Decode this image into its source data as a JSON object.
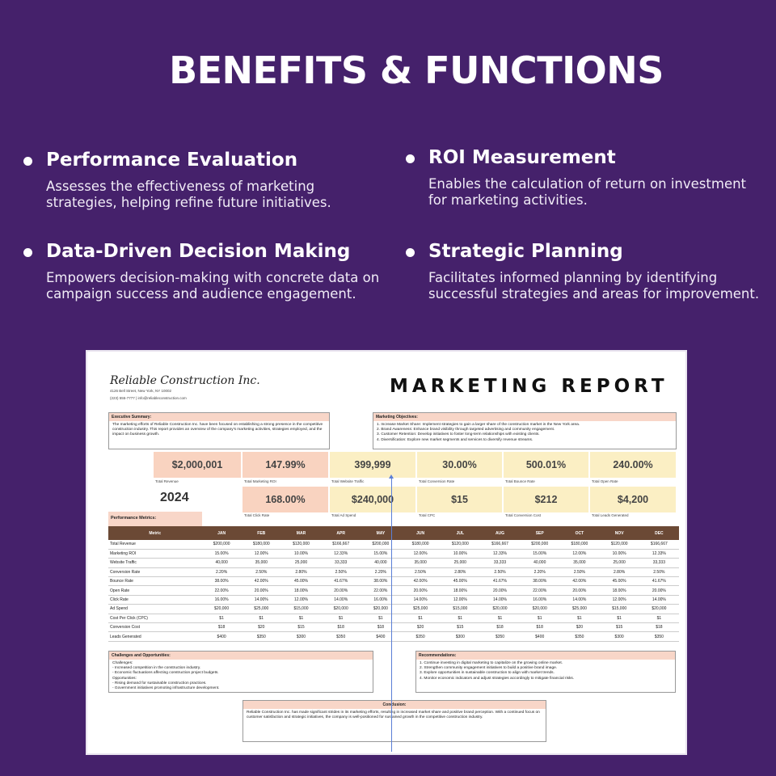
{
  "headline": "BENEFITS & FUNCTIONS",
  "benefits": [
    {
      "title": "Performance Evaluation",
      "desc": "Assesses the effectiveness of marketing strategies, helping refine future initiatives."
    },
    {
      "title": "ROI Measurement",
      "desc": "Enables the calculation of return on investment for marketing activities."
    },
    {
      "title": "Data-Driven Decision Making",
      "desc": "Empowers decision-making with concrete data on campaign success and audience engagement."
    },
    {
      "title": "Strategic Planning",
      "desc": "Facilitates informed planning by identifying successful strategies and areas for improvement."
    }
  ],
  "report": {
    "company": "Reliable Construction Inc.",
    "address": "4126 Bell Street, New York, NY 10002",
    "contact": "(223) 555-7777 | info@reliableconstruction.com",
    "title": "MARKETING REPORT",
    "executive_summary": {
      "heading": "Executive Summary:",
      "text": "The marketing efforts of Reliable Construction Inc. have been focused on establishing a strong presence in the competitive construction industry. This report provides an overview of the company's marketing activities, strategies employed, and the impact on business growth."
    },
    "objectives": {
      "heading": "Marketing Objectives:",
      "lines": [
        "1. Increase Market Share: Implement strategies to gain a larger share of the construction market in the New York area.",
        "2. Brand Awareness: Enhance brand visibility through targeted advertising and community engagement.",
        "3. Customer Retention: Develop initiatives to foster long-term relationships with existing clients.",
        "4. Diversification: Explore new market segments and services to diversify revenue streams."
      ]
    },
    "kpis_row1": [
      {
        "value": "$2,000,001",
        "label": "Total Revenue"
      },
      {
        "value": "147.99%",
        "label": "Total Marketing ROI"
      },
      {
        "value": "399,999",
        "label": "Total Website Traffic"
      },
      {
        "value": "30.00%",
        "label": "Total Conversion Rate"
      },
      {
        "value": "500.01%",
        "label": "Total Bounce Rate"
      },
      {
        "value": "240.00%",
        "label": "Total Open Rate"
      }
    ],
    "year": "2024",
    "kpis_row2": [
      {
        "value": "168.00%",
        "label": "Total Click Rate"
      },
      {
        "value": "$240,000",
        "label": "Total Ad Spend"
      },
      {
        "value": "$15",
        "label": "Total CPC"
      },
      {
        "value": "$212",
        "label": "Total Conversion Cost"
      },
      {
        "value": "$4,200",
        "label": "Total Leads Generated"
      }
    ],
    "performance_label": "Performance Metrics:",
    "table": {
      "headers": [
        "Metric",
        "JAN",
        "FEB",
        "MAR",
        "APR",
        "MAY",
        "JUN",
        "JUL",
        "AUG",
        "SEP",
        "OCT",
        "NOV",
        "DEC"
      ],
      "rows": [
        [
          "Total Revenue",
          "$200,000",
          "$180,000",
          "$120,000",
          "$166,667",
          "$200,000",
          "$180,000",
          "$120,000",
          "$166,667",
          "$200,000",
          "$180,000",
          "$120,000",
          "$166,667"
        ],
        [
          "Marketing ROI",
          "15.00%",
          "12.00%",
          "10.00%",
          "12.33%",
          "15.00%",
          "12.00%",
          "10.00%",
          "12.33%",
          "15.00%",
          "12.00%",
          "10.00%",
          "12.33%"
        ],
        [
          "Website Traffic",
          "40,000",
          "35,000",
          "25,000",
          "33,333",
          "40,000",
          "35,000",
          "25,000",
          "33,333",
          "40,000",
          "35,000",
          "25,000",
          "33,333"
        ],
        [
          "Conversion Rate",
          "2.20%",
          "2.50%",
          "2.80%",
          "2.50%",
          "2.20%",
          "2.50%",
          "2.80%",
          "2.50%",
          "2.20%",
          "2.50%",
          "2.80%",
          "2.50%"
        ],
        [
          "Bounce Rate",
          "38.00%",
          "42.00%",
          "45.00%",
          "41.67%",
          "38.00%",
          "42.00%",
          "45.00%",
          "41.67%",
          "38.00%",
          "42.00%",
          "45.00%",
          "41.67%"
        ],
        [
          "Open Rate",
          "22.00%",
          "20.00%",
          "18.00%",
          "20.00%",
          "22.00%",
          "20.00%",
          "18.00%",
          "20.00%",
          "22.00%",
          "20.00%",
          "18.00%",
          "20.00%"
        ],
        [
          "Click Rate",
          "16.00%",
          "14.00%",
          "12.00%",
          "14.00%",
          "16.00%",
          "14.00%",
          "12.00%",
          "14.00%",
          "16.00%",
          "14.00%",
          "12.00%",
          "14.00%"
        ],
        [
          "Ad Spend",
          "$20,000",
          "$25,000",
          "$15,000",
          "$20,000",
          "$20,000",
          "$25,000",
          "$15,000",
          "$20,000",
          "$20,000",
          "$25,000",
          "$15,000",
          "$20,000"
        ],
        [
          "Cost Per Click (CPC)",
          "$1",
          "$1",
          "$1",
          "$1",
          "$1",
          "$1",
          "$1",
          "$1",
          "$1",
          "$1",
          "$1",
          "$1"
        ],
        [
          "Conversion Cost",
          "$18",
          "$20",
          "$15",
          "$18",
          "$18",
          "$20",
          "$15",
          "$18",
          "$18",
          "$20",
          "$15",
          "$18"
        ],
        [
          "Leads Generated",
          "$400",
          "$350",
          "$300",
          "$350",
          "$400",
          "$350",
          "$300",
          "$350",
          "$400",
          "$350",
          "$300",
          "$350"
        ]
      ]
    },
    "challenges": {
      "heading": "Challenges and Opportunities:",
      "lines": [
        "Challenges:",
        "- Increased competition in the construction industry.",
        "- Economic fluctuations affecting construction project budgets.",
        "Opportunities:",
        "- Rising demand for sustainable construction practices.",
        "- Government initiatives promoting infrastructure development."
      ]
    },
    "recommendations": {
      "heading": "Recommendations:",
      "lines": [
        "1. Continue investing in digital marketing to capitalize on the growing online market.",
        "2. Strengthen community engagement initiatives to build a positive brand image.",
        "3. Explore opportunities in sustainable construction to align with market trends.",
        "4. Monitor economic indicators and adjust strategies accordingly to mitigate financial risks."
      ]
    },
    "conclusion": {
      "heading": "Conclusion:",
      "text": "Reliable Construction Inc. has made significant strides in its marketing efforts, resulting in increased market share and positive brand perception. With a continued focus on customer satisfaction and strategic initiatives, the company is well-positioned for sustained growth in the competitive construction industry."
    },
    "colors": {
      "kpi_peach": "#f9d3c0",
      "kpi_yellow": "#fbefc4",
      "table_header": "#6b4935",
      "box_header": "#f8d6c8"
    }
  }
}
